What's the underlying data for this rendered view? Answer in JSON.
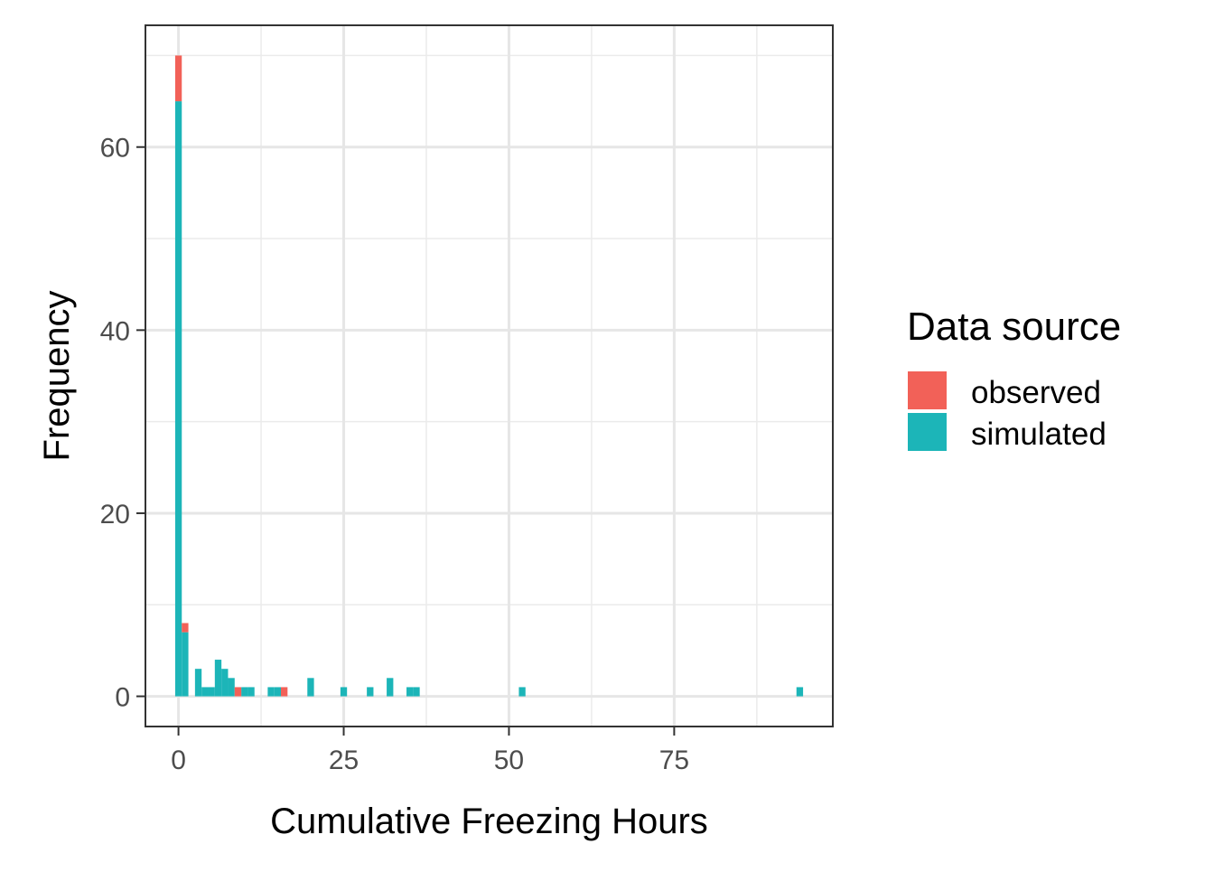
{
  "chart_data": {
    "type": "bar",
    "subtype": "stacked-histogram",
    "title": "",
    "xlabel": "Cumulative Freezing Hours",
    "ylabel": "Frequency",
    "xlim": [
      -5,
      99
    ],
    "ylim": [
      -3.3,
      73.3
    ],
    "x_ticks": [
      0,
      25,
      50,
      75
    ],
    "y_ticks": [
      0,
      20,
      40,
      60
    ],
    "grid": true,
    "bin_width": 1,
    "legend": {
      "title": "Data source",
      "position": "right",
      "entries": [
        {
          "label": "observed",
          "color": "#F8766D"
        },
        {
          "label": "simulated",
          "color": "#00BFC4"
        }
      ]
    },
    "series": [
      {
        "name": "simulated",
        "color": "#1CB5B8",
        "bins": [
          {
            "x": 0,
            "count": 65
          },
          {
            "x": 1,
            "count": 7
          },
          {
            "x": 3,
            "count": 3
          },
          {
            "x": 4,
            "count": 1
          },
          {
            "x": 5,
            "count": 1
          },
          {
            "x": 6,
            "count": 4
          },
          {
            "x": 7,
            "count": 3
          },
          {
            "x": 8,
            "count": 2
          },
          {
            "x": 9,
            "count": 0
          },
          {
            "x": 10,
            "count": 1
          },
          {
            "x": 11,
            "count": 1
          },
          {
            "x": 14,
            "count": 1
          },
          {
            "x": 15,
            "count": 1
          },
          {
            "x": 16,
            "count": 0
          },
          {
            "x": 20,
            "count": 2
          },
          {
            "x": 25,
            "count": 1
          },
          {
            "x": 29,
            "count": 1
          },
          {
            "x": 32,
            "count": 2
          },
          {
            "x": 35,
            "count": 1
          },
          {
            "x": 36,
            "count": 1
          },
          {
            "x": 52,
            "count": 1
          },
          {
            "x": 94,
            "count": 1
          }
        ]
      },
      {
        "name": "observed",
        "color": "#F26158",
        "bins": [
          {
            "x": 0,
            "count": 5
          },
          {
            "x": 1,
            "count": 1
          },
          {
            "x": 9,
            "count": 1
          },
          {
            "x": 16,
            "count": 1
          }
        ]
      }
    ]
  }
}
